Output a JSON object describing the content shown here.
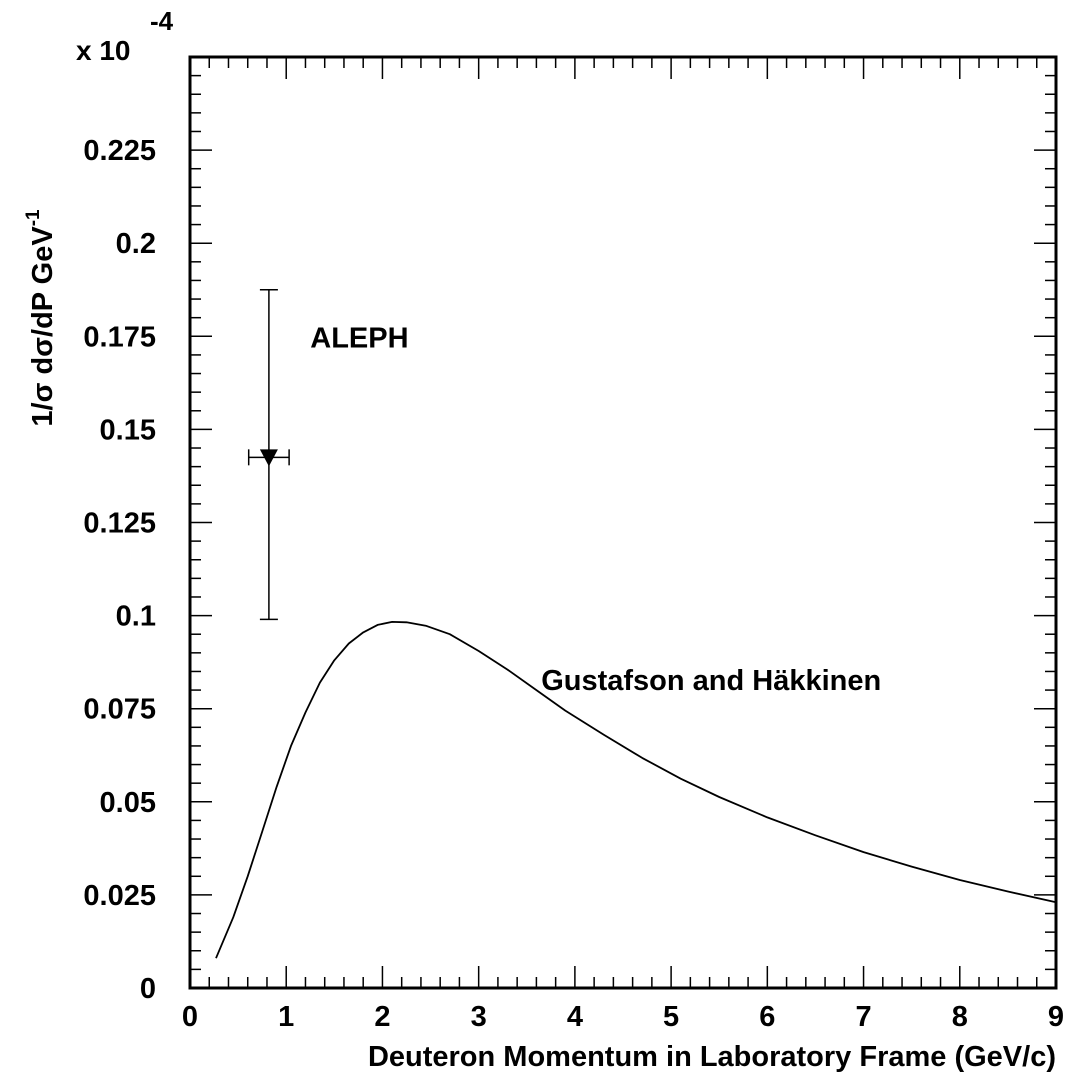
{
  "chart_data": {
    "type": "line",
    "title": "",
    "scale_label": "x 10",
    "scale_exponent": "-4",
    "xlabel": "Deuteron Momentum in Laboratory Frame (GeV/c)",
    "ylabel_main": "1/σ dσ/dP GeV",
    "ylabel_sup": "-1",
    "xlim": [
      0,
      9
    ],
    "ylim": [
      0,
      0.25
    ],
    "x_ticks": [
      "0",
      "1",
      "2",
      "3",
      "4",
      "5",
      "6",
      "7",
      "8",
      "9"
    ],
    "y_ticks": [
      "0",
      "0.025",
      "0.05",
      "0.075",
      "0.1",
      "0.125",
      "0.15",
      "0.175",
      "0.2",
      "0.225"
    ],
    "grid": false,
    "series": [
      {
        "name": "Gustafson and Häkkinen",
        "style": "line",
        "x": [
          0.27,
          0.45,
          0.6,
          0.75,
          0.9,
          1.05,
          1.2,
          1.35,
          1.5,
          1.65,
          1.8,
          1.95,
          2.1,
          2.25,
          2.45,
          2.7,
          3.0,
          3.3,
          3.6,
          3.9,
          4.3,
          4.7,
          5.1,
          5.5,
          6.0,
          6.5,
          7.0,
          7.5,
          8.0,
          8.5,
          9.0
        ],
        "y": [
          0.008,
          0.019,
          0.03,
          0.042,
          0.054,
          0.065,
          0.074,
          0.082,
          0.088,
          0.0925,
          0.0955,
          0.0975,
          0.0983,
          0.0982,
          0.0973,
          0.095,
          0.0905,
          0.0855,
          0.08,
          0.0745,
          0.068,
          0.0618,
          0.0562,
          0.0513,
          0.0458,
          0.041,
          0.0365,
          0.0326,
          0.029,
          0.0259,
          0.023
        ]
      },
      {
        "name": "ALEPH",
        "style": "marker",
        "marker": "triangle-down",
        "x": [
          0.82
        ],
        "y": [
          0.1425
        ],
        "x_err": [
          0.21
        ],
        "y_err_low": [
          0.0435
        ],
        "y_err_high": [
          0.045
        ]
      }
    ],
    "annotations": [
      {
        "text": "ALEPH",
        "x": 1.25,
        "y": 0.172
      },
      {
        "text": "Gustafson and Häkkinen",
        "x": 3.65,
        "y": 0.08
      }
    ]
  }
}
